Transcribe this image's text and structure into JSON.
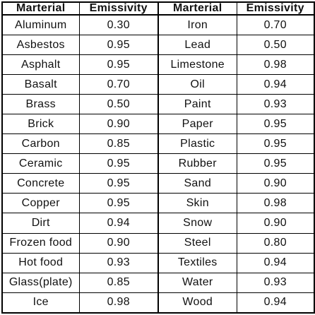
{
  "table": {
    "headers": [
      "Marterial",
      "Emissivity",
      "Marterial",
      "Emissivity"
    ],
    "left_rows": [
      {
        "material": "Aluminum",
        "emissivity": "0.30"
      },
      {
        "material": "Asbestos",
        "emissivity": "0.95"
      },
      {
        "material": "Asphalt",
        "emissivity": "0.95"
      },
      {
        "material": "Basalt",
        "emissivity": "0.70"
      },
      {
        "material": "Brass",
        "emissivity": "0.50"
      },
      {
        "material": "Brick",
        "emissivity": "0.90"
      },
      {
        "material": "Carbon",
        "emissivity": "0.85"
      },
      {
        "material": "Ceramic",
        "emissivity": "0.95"
      },
      {
        "material": "Concrete",
        "emissivity": "0.95"
      },
      {
        "material": "Copper",
        "emissivity": "0.95"
      },
      {
        "material": "Dirt",
        "emissivity": "0.94"
      },
      {
        "material": "Frozen food",
        "emissivity": "0.90"
      },
      {
        "material": "Hot food",
        "emissivity": "0.93"
      },
      {
        "material": "Glass(plate)",
        "emissivity": "0.85"
      },
      {
        "material": "Ice",
        "emissivity": "0.98"
      }
    ],
    "right_rows": [
      {
        "material": "Iron",
        "emissivity": "0.70"
      },
      {
        "material": "Lead",
        "emissivity": "0.50"
      },
      {
        "material": "Limestone",
        "emissivity": "0.98"
      },
      {
        "material": "Oil",
        "emissivity": "0.94"
      },
      {
        "material": "Paint",
        "emissivity": "0.93"
      },
      {
        "material": "Paper",
        "emissivity": "0.95"
      },
      {
        "material": "Plastic",
        "emissivity": "0.95"
      },
      {
        "material": "Rubber",
        "emissivity": "0.95"
      },
      {
        "material": "Sand",
        "emissivity": "0.90"
      },
      {
        "material": "Skin",
        "emissivity": "0.98"
      },
      {
        "material": "Snow",
        "emissivity": "0.90"
      },
      {
        "material": "Steel",
        "emissivity": "0.80"
      },
      {
        "material": "Textiles",
        "emissivity": "0.94"
      },
      {
        "material": "Water",
        "emissivity": "0.93"
      },
      {
        "material": "Wood",
        "emissivity": "0.94"
      }
    ]
  }
}
